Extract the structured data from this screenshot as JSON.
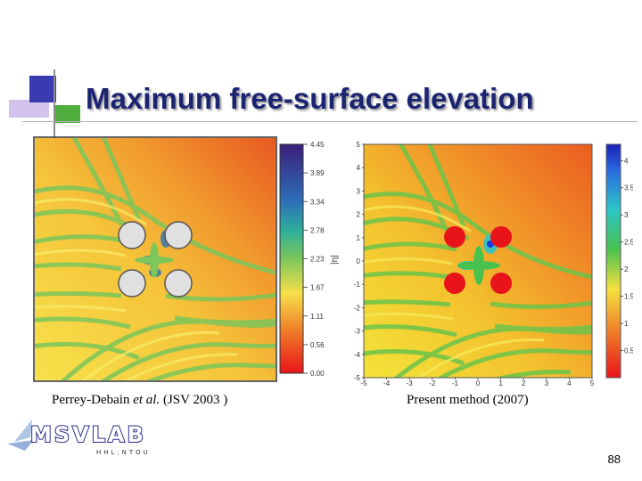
{
  "slide": {
    "title": "Maximum free-surface elevation",
    "page_number": "88"
  },
  "left_figure": {
    "caption_prefix": "Perrey-Debain ",
    "caption_italic": "et al.",
    "caption_suffix": " (JSV 2003 )",
    "colorbar_ticks": [
      "4.45",
      "3.89",
      "3.34",
      "2.78",
      "2.23",
      "1.67",
      "1.11",
      "0.56",
      "0.00"
    ],
    "colorbar_label": "|η|"
  },
  "right_figure": {
    "caption": "Present method (2007)",
    "y_ticks": [
      "5",
      "4",
      "3",
      "2",
      "1",
      "0",
      "-1",
      "-2",
      "-3",
      "-4",
      "-5"
    ],
    "x_ticks": [
      "-5",
      "-4",
      "-3",
      "-2",
      "-1",
      "0",
      "1",
      "2",
      "3",
      "4",
      "5"
    ],
    "colorbar_ticks": [
      "4",
      "3.5",
      "3",
      "2.5",
      "2",
      "1.5",
      "1",
      "0.5"
    ]
  },
  "logo": {
    "name": "MSVLAB",
    "subtitle": "HHL,NTOU"
  },
  "colors": {
    "title": "#1b2470",
    "field_orange": "#f08a2a",
    "field_yellow": "#f3d23a",
    "field_green": "#7cc65a",
    "cylinder_left": "#e0e0e0",
    "cylinder_right": "#e8141a"
  }
}
